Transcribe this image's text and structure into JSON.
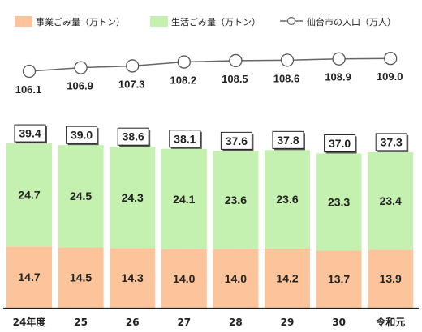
{
  "chart_data": {
    "type": "bar",
    "stacked": true,
    "categories": [
      "24年度",
      "25",
      "26",
      "27",
      "28",
      "29",
      "30",
      "令和元"
    ],
    "series": [
      {
        "name": "事業ごみ量（万トン）",
        "values": [
          14.7,
          14.5,
          14.3,
          14.0,
          14.0,
          14.2,
          13.7,
          13.9
        ],
        "color": "#fbc49b"
      },
      {
        "name": "生活ごみ量（万トン）",
        "values": [
          24.7,
          24.5,
          24.3,
          24.1,
          23.6,
          23.6,
          23.3,
          23.4
        ],
        "color": "#c4f0b0"
      }
    ],
    "totals": [
      39.4,
      39.0,
      38.6,
      38.1,
      37.6,
      37.8,
      37.0,
      37.3
    ],
    "line_series": {
      "name": "仙台市の人口（万人）",
      "values": [
        106.1,
        106.9,
        107.3,
        108.2,
        108.5,
        108.6,
        108.9,
        109.0
      ],
      "marker": "open-circle",
      "color": "#666666"
    },
    "legend_position": "top",
    "grid": false
  }
}
